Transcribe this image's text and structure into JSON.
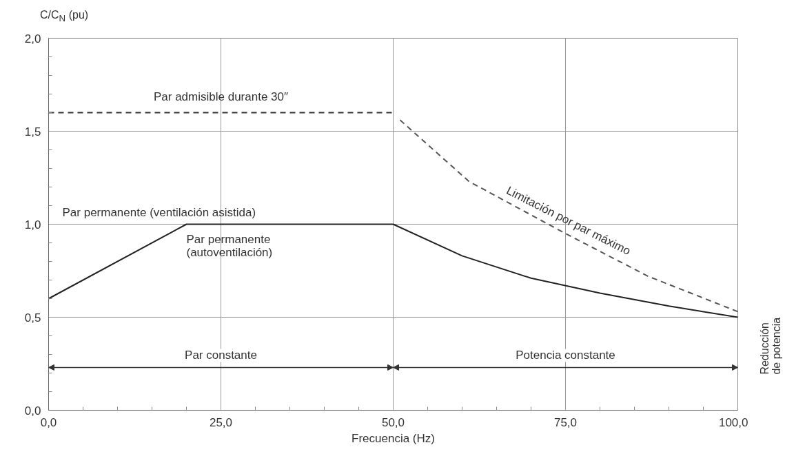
{
  "chart_data": {
    "type": "line",
    "xlabel": "Frecuencia (Hz)",
    "ylabel": "C/C$_{N}$ (pu)",
    "xlim": [
      0,
      100
    ],
    "ylim": [
      0,
      2
    ],
    "xticks": [
      {
        "value": 0,
        "label": "0,0"
      },
      {
        "value": 25,
        "label": "25,0"
      },
      {
        "value": 50,
        "label": "50,0"
      },
      {
        "value": 75,
        "label": "75,0"
      },
      {
        "value": 100,
        "label": "100,0"
      }
    ],
    "yticks": [
      {
        "value": 0,
        "label": "0,0"
      },
      {
        "value": 0.5,
        "label": "0,5"
      },
      {
        "value": 1,
        "label": "1,0"
      },
      {
        "value": 1.5,
        "label": "1,5"
      },
      {
        "value": 2,
        "label": "2,0"
      }
    ],
    "grid": true,
    "series": [
      {
        "color": "#222222",
        "line_style": "solid",
        "x": [
          0,
          20,
          50,
          60,
          70,
          80,
          90,
          100
        ],
        "values": [
          0.6,
          1.0,
          1.0,
          0.83,
          0.71,
          0.63,
          0.56,
          0.5
        ]
      },
      {
        "color": "#333333",
        "line_style": "dashed",
        "x": [
          0,
          50
        ],
        "values": [
          1.6,
          1.6
        ]
      },
      {
        "color": "#555555",
        "line_style": "dashed",
        "x": [
          51,
          61,
          75,
          87,
          100
        ],
        "values": [
          1.56,
          1.23,
          0.95,
          0.72,
          0.53
        ]
      }
    ],
    "annotations": [
      {
        "text": "Par admisible durante 30″",
        "x": 25,
        "y": 1.6
      },
      "Par permanente (ventilación asistida)",
      {
        "text": "Par permanente\n(autoventilación)",
        "x": 20,
        "y": 1.0
      },
      {
        "text": "Limitación por par máximo",
        "x": 75,
        "y": 0.95
      },
      "Par constante",
      "Potencia constante",
      "Reducción de potencia"
    ]
  }
}
